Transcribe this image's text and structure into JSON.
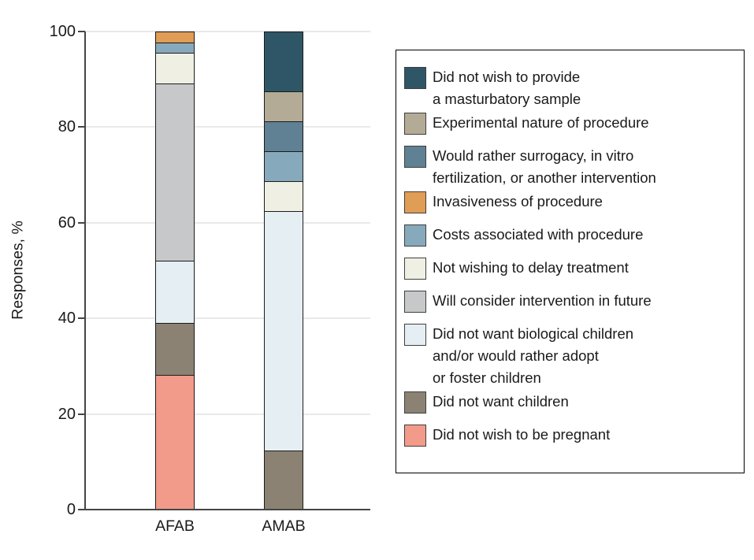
{
  "figure": {
    "background": "#ffffff",
    "axis_color": "#454545",
    "gridline_color": "#e9e9e9",
    "text_color": "#1a1a1a",
    "segment_border_color": "#1b1b1b"
  },
  "chart_data": {
    "type": "bar",
    "subtype": "stacked-vertical",
    "title": "",
    "xlabel": "",
    "ylabel": "Responses, %",
    "ylim": [
      0,
      100
    ],
    "yticks": [
      0,
      20,
      40,
      60,
      80,
      100
    ],
    "grid": true,
    "legend_position": "right",
    "categories": [
      "AFAB",
      "AMAB"
    ],
    "series": [
      {
        "name": "did-not-wish-to-provide-a-masturbatory-sample",
        "color": "#2F5666",
        "legend_lines": [
          "Did not wish to provide",
          "a masturbatory sample"
        ],
        "values": [
          0,
          12.5
        ]
      },
      {
        "name": "experimental-nature-of-procedure",
        "color": "#B4AB96",
        "legend_lines": [
          "Experimental nature of procedure"
        ],
        "values": [
          0,
          6.25
        ]
      },
      {
        "name": "would-rather-surrogacy-in-vitro-fertilization-or-another-intervention",
        "color": "#5F8193",
        "legend_lines": [
          "Would rather surrogacy, in vitro",
          "fertilization, or another intervention"
        ],
        "values": [
          0,
          6.25
        ]
      },
      {
        "name": "invasiveness-of-procedure",
        "color": "#E09D55",
        "legend_lines": [
          "Invasiveness of procedure"
        ],
        "values": [
          2.17,
          0
        ]
      },
      {
        "name": "costs-associated-with-procedure",
        "color": "#87A9BC",
        "legend_lines": [
          "Costs associated with procedure"
        ],
        "values": [
          2.17,
          6.25
        ]
      },
      {
        "name": "not-wishing-to-delay-treatment",
        "color": "#EFEFE3",
        "legend_lines": [
          "Not wishing to delay treatment"
        ],
        "values": [
          6.52,
          6.25
        ]
      },
      {
        "name": "will-consider-intervention-in-future",
        "color": "#C7C8CA",
        "legend_lines": [
          "Will consider intervention in future"
        ],
        "values": [
          36.96,
          0
        ]
      },
      {
        "name": "did-not-want-biological-children-andor-would-rather-adopt-or-foster-children",
        "color": "#E5EEF3",
        "legend_lines": [
          "Did not want biological children",
          "and/or would rather adopt",
          "or foster children"
        ],
        "values": [
          13.04,
          50
        ]
      },
      {
        "name": "did-not-want-children",
        "color": "#8B8273",
        "legend_lines": [
          "Did not want children"
        ],
        "values": [
          10.87,
          12.5
        ]
      },
      {
        "name": "did-not-wish-to-be-pregnant",
        "color": "#F29B8A",
        "legend_lines": [
          "Did not wish to be pregnant"
        ],
        "values": [
          28.26,
          0
        ]
      }
    ]
  }
}
